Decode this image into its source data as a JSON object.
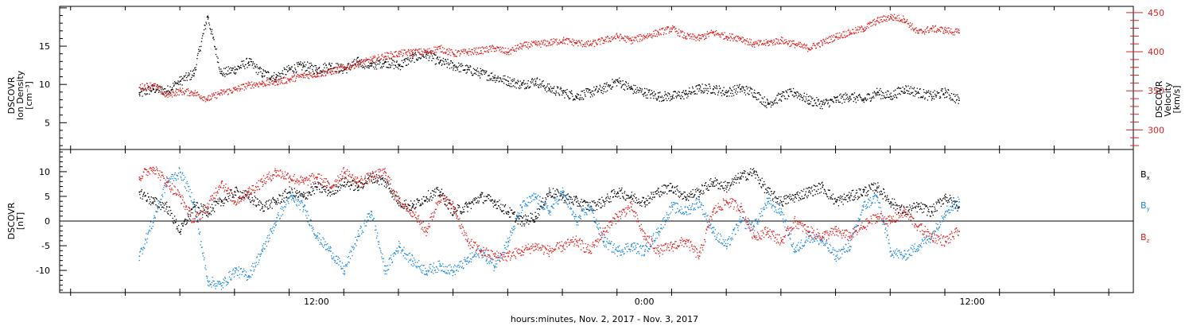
{
  "chart_data": [
    {
      "type": "scatter",
      "panel": "density-velocity",
      "ylabel": [
        "DSCOVR",
        "Ion Density",
        "[cm⁻³]"
      ],
      "ylabel_right": [
        "DSCOVR",
        "Velocity",
        "[km/s]"
      ],
      "ylim": [
        1.5,
        20.2
      ],
      "y_right_lim": [
        275,
        458
      ],
      "yticks": [
        5,
        10,
        15
      ],
      "y_right_ticks": [
        300,
        350,
        400,
        450
      ],
      "series": [
        {
          "color": "#000000",
          "axis": "left",
          "x": [
            5.5,
            6,
            6.5,
            7,
            7.5,
            8,
            8.5,
            9,
            9.5,
            10,
            10.5,
            11,
            11.5,
            12,
            12.5,
            13,
            13.5,
            14,
            14.5,
            15,
            15.5,
            16,
            16.5,
            17,
            17.5,
            18,
            18.5,
            19,
            19.5,
            20,
            20.5,
            21,
            21.5,
            22,
            22.5,
            23,
            23.5,
            24,
            24.5,
            25,
            25.5,
            26,
            26.5,
            27,
            27.5,
            28,
            28.5,
            29,
            29.5,
            30,
            30.5,
            31,
            31.5,
            32,
            32.5,
            33,
            33.5,
            34,
            34.5,
            35,
            35.5
          ],
          "values": [
            8.8,
            9.5,
            9.2,
            10.5,
            11.5,
            19.0,
            11.5,
            12.0,
            13.0,
            11.5,
            11.0,
            12.0,
            12.5,
            12.0,
            12.5,
            12.0,
            13.0,
            12.5,
            13.0,
            12.5,
            13.5,
            14.0,
            13.0,
            12.5,
            12.0,
            11.5,
            11.0,
            10.5,
            10.0,
            10.5,
            9.5,
            9.0,
            8.5,
            9.0,
            9.5,
            10.5,
            9.5,
            9.0,
            8.5,
            8.5,
            8.8,
            9.5,
            9.5,
            9.0,
            9.5,
            9.0,
            7.5,
            8.5,
            9.0,
            8.0,
            7.5,
            8.0,
            8.5,
            8.0,
            9.0,
            8.5,
            9.5,
            9.0,
            8.5,
            9.0,
            8.0
          ]
        },
        {
          "color": "#e02020",
          "axis": "right",
          "x": [
            5.5,
            6,
            6.5,
            7,
            7.5,
            8,
            8.5,
            9,
            9.5,
            10,
            10.5,
            11,
            11.5,
            12,
            12.5,
            13,
            13.5,
            14,
            14.5,
            15,
            15.5,
            16,
            16.5,
            17,
            17.5,
            18,
            18.5,
            19,
            19.5,
            20,
            20.5,
            21,
            21.5,
            22,
            22.5,
            23,
            23.5,
            24,
            24.5,
            25,
            25.5,
            26,
            26.5,
            27,
            27.5,
            28,
            28.5,
            29,
            29.5,
            30,
            30.5,
            31,
            31.5,
            32,
            32.5,
            33,
            33.5,
            34,
            34.5,
            35,
            35.5
          ],
          "values": [
            355,
            358,
            345,
            350,
            348,
            340,
            348,
            352,
            358,
            360,
            362,
            365,
            370,
            372,
            375,
            380,
            385,
            390,
            395,
            398,
            400,
            400,
            405,
            398,
            400,
            402,
            405,
            400,
            408,
            410,
            412,
            415,
            412,
            410,
            415,
            420,
            415,
            420,
            425,
            430,
            420,
            418,
            425,
            420,
            418,
            410,
            412,
            415,
            410,
            405,
            412,
            420,
            425,
            430,
            440,
            445,
            442,
            425,
            430,
            428,
            425
          ]
        }
      ]
    },
    {
      "type": "scatter",
      "panel": "magnetic-field",
      "ylabel": [
        "DSCOVR",
        "[nT]"
      ],
      "ylim": [
        -14.5,
        14.5
      ],
      "yticks": [
        -10,
        -5,
        0,
        5,
        10
      ],
      "zero_line": true,
      "legend": [
        {
          "label": "B",
          "sub": "x",
          "color": "#000000"
        },
        {
          "label": "B",
          "sub": "y",
          "color": "#1a88dd"
        },
        {
          "label": "B",
          "sub": "z",
          "color": "#e02020"
        }
      ],
      "series": [
        {
          "label": "Bx",
          "color": "#000000",
          "x": [
            5.5,
            6,
            6.5,
            7,
            7.5,
            8,
            8.5,
            9,
            9.5,
            10,
            10.5,
            11,
            11.5,
            12,
            12.5,
            13,
            13.5,
            14,
            14.5,
            15,
            15.5,
            16,
            16.5,
            17,
            17.5,
            18,
            18.5,
            19,
            19.5,
            20,
            20.5,
            21,
            21.5,
            22,
            22.5,
            23,
            23.5,
            24,
            24.5,
            25,
            25.5,
            26,
            26.5,
            27,
            27.5,
            28,
            28.5,
            29,
            29.5,
            30,
            30.5,
            31,
            31.5,
            32,
            32.5,
            33,
            33.5,
            34,
            34.5,
            35,
            35.5
          ],
          "values": [
            6,
            4,
            3,
            -2,
            3,
            2,
            4,
            6,
            5,
            3,
            4,
            6,
            5,
            7,
            6,
            8,
            7,
            9,
            8,
            4,
            3,
            5,
            6,
            2,
            3,
            5,
            4,
            2,
            0,
            1,
            6,
            5,
            4,
            3,
            4,
            6,
            5,
            4,
            6,
            7,
            5,
            6,
            8,
            7,
            9,
            10,
            6,
            4,
            5,
            6,
            7,
            4,
            5,
            6,
            7,
            4,
            2,
            3,
            2,
            5,
            3
          ]
        },
        {
          "label": "By",
          "color": "#1a88dd",
          "x": [
            5.5,
            6,
            6.5,
            7,
            7.5,
            8,
            8.5,
            9,
            9.5,
            10,
            10.5,
            11,
            11.5,
            12,
            12.5,
            13,
            13.5,
            14,
            14.5,
            15,
            15.5,
            16,
            16.5,
            17,
            17.5,
            18,
            18.5,
            19,
            19.5,
            20,
            20.5,
            21,
            21.5,
            22,
            22.5,
            23,
            23.5,
            24,
            24.5,
            25,
            25.5,
            26,
            26.5,
            27,
            27.5,
            28,
            28.5,
            29,
            29.5,
            30,
            30.5,
            31,
            31.5,
            32,
            32.5,
            33,
            33.5,
            34,
            34.5,
            35,
            35.5
          ],
          "values": [
            -7,
            0,
            8,
            10,
            4,
            -12,
            -13,
            -10,
            -11,
            -6,
            0,
            5,
            3,
            -3,
            -6,
            -10,
            -3,
            2,
            -10,
            -5,
            -8,
            -10,
            -9,
            -10,
            -8,
            -6,
            -9,
            -4,
            3,
            5,
            2,
            6,
            0,
            3,
            -4,
            -6,
            -5,
            -6,
            -2,
            3,
            2,
            4,
            -2,
            -5,
            0,
            -1,
            4,
            2,
            -6,
            -3,
            -4,
            -7,
            -5,
            3,
            5,
            -6,
            -7,
            -5,
            -3,
            2,
            4
          ]
        },
        {
          "label": "Bz",
          "color": "#e02020",
          "x": [
            5.5,
            6,
            6.5,
            7,
            7.5,
            8,
            8.5,
            9,
            9.5,
            10,
            10.5,
            11,
            11.5,
            12,
            12.5,
            13,
            13.5,
            14,
            14.5,
            15,
            15.5,
            16,
            16.5,
            17,
            17.5,
            18,
            18.5,
            19,
            19.5,
            20,
            20.5,
            21,
            21.5,
            22,
            22.5,
            23,
            23.5,
            24,
            24.5,
            25,
            25.5,
            26,
            26.5,
            27,
            27.5,
            28,
            28.5,
            29,
            29.5,
            30,
            30.5,
            31,
            31.5,
            32,
            32.5,
            33,
            33.5,
            34,
            34.5,
            35,
            35.5
          ],
          "values": [
            9,
            11,
            8,
            5,
            0,
            3,
            8,
            4,
            6,
            8,
            10,
            9,
            8,
            9,
            7,
            10,
            8,
            9,
            10,
            4,
            2,
            -2,
            5,
            3,
            -4,
            -6,
            -7,
            -7,
            -6,
            -5,
            -6,
            -5,
            -4,
            -6,
            -2,
            1,
            3,
            -3,
            -6,
            -5,
            -4,
            -7,
            2,
            4,
            3,
            -3,
            -2,
            -4,
            0,
            -2,
            -3,
            -2,
            -3,
            -1,
            1,
            0,
            2,
            -1,
            -3,
            -4,
            -2
          ]
        }
      ]
    }
  ],
  "x_axis": {
    "min": 2.6,
    "max": 41.9,
    "ticks": [
      {
        "x": 12,
        "label": "12:00"
      },
      {
        "x": 24,
        "label": "0:00"
      },
      {
        "x": 36,
        "label": "12:00"
      }
    ],
    "xlabel": "hours:minutes, Nov.  2, 2017 - Nov.  3, 2017"
  },
  "colors": {
    "black": "#000000",
    "red": "#e02020",
    "blue": "#1a88dd"
  }
}
